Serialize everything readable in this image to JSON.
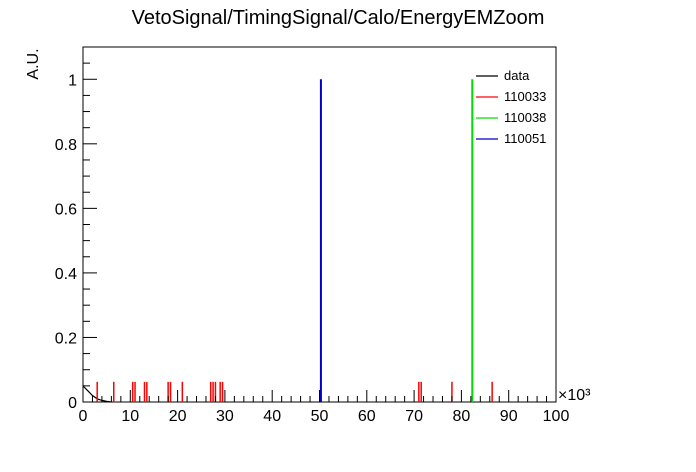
{
  "chart_data": {
    "type": "bar",
    "title": "VetoSignal/TimingSignal/Calo/EnergyEMZoom",
    "xlabel": "",
    "ylabel": "A.U.",
    "x_multiplier_label": "×10³",
    "xlim": [
      0,
      100
    ],
    "ylim": [
      0,
      1.1
    ],
    "x_ticks": [
      "0",
      "10",
      "20",
      "30",
      "40",
      "50",
      "60",
      "70",
      "80",
      "90",
      "100"
    ],
    "y_ticks": [
      "0",
      "0.2",
      "0.4",
      "0.6",
      "0.8",
      "1"
    ],
    "grid": false,
    "legend_placement": "top-right",
    "series": [
      {
        "name": "data",
        "color": "#000000",
        "style": "line",
        "points": [
          [
            0,
            0.05
          ],
          [
            1,
            0.035
          ],
          [
            2,
            0.02
          ],
          [
            3,
            0.01
          ],
          [
            4,
            0.005
          ],
          [
            5,
            0.002
          ],
          [
            6,
            0.0
          ]
        ]
      },
      {
        "name": "110033",
        "color": "#ff0000",
        "style": "spikes",
        "x": [
          3,
          6.5,
          10.5,
          11,
          13,
          13.5,
          18,
          18.5,
          21,
          27,
          27.5,
          28,
          29,
          29.5,
          71,
          71.5,
          78,
          86.5
        ],
        "values": [
          0.0625,
          0.0625,
          0.0625,
          0.0625,
          0.0625,
          0.0625,
          0.0625,
          0.0625,
          0.0625,
          0.0625,
          0.0625,
          0.0625,
          0.0625,
          0.0625,
          0.0625,
          0.0625,
          0.0625,
          0.0625
        ]
      },
      {
        "name": "110038",
        "color": "#00dd00",
        "style": "spikes",
        "x": [
          82.3
        ],
        "values": [
          1.0
        ]
      },
      {
        "name": "110051",
        "color": "#0000cc",
        "style": "spikes",
        "x": [
          50.3
        ],
        "values": [
          1.0
        ]
      }
    ]
  }
}
